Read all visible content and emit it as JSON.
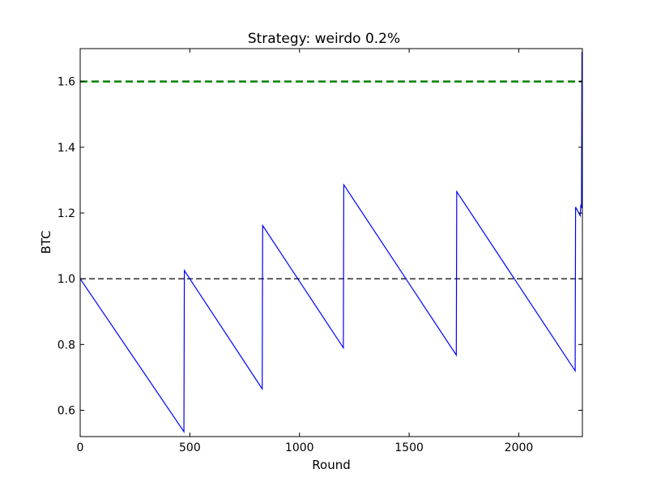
{
  "chart_data": {
    "type": "line",
    "title": "Strategy: weirdo 0.2%",
    "xlabel": "Round",
    "ylabel": "BTC",
    "xlim": [
      0,
      2290
    ],
    "ylim": [
      0.52,
      1.7
    ],
    "x_ticks": [
      0,
      500,
      1000,
      1500,
      2000
    ],
    "x_tick_labels": [
      "0",
      "500",
      "1000",
      "1500",
      "2000"
    ],
    "y_ticks": [
      0.6,
      0.8,
      1.0,
      1.2,
      1.4,
      1.6
    ],
    "y_tick_labels": [
      "0.6",
      "0.8",
      "1.0",
      "1.2",
      "1.4",
      "1.6"
    ],
    "grid": false,
    "series": [
      {
        "color": "#0000ff",
        "x": [
          0,
          473,
          475,
          830,
          832,
          1200,
          1202,
          1715,
          1717,
          2257,
          2259,
          2280,
          2283,
          2286,
          2288
        ],
        "y": [
          1.0,
          0.535,
          1.025,
          0.665,
          1.162,
          0.79,
          1.286,
          0.768,
          1.265,
          0.72,
          1.218,
          1.192,
          1.225,
          1.215,
          1.69
        ]
      }
    ],
    "reference_lines": [
      {
        "y": 1.6,
        "color": "#008000",
        "style": "dashed"
      },
      {
        "y": 1.0,
        "color": "#000000",
        "style": "dashed"
      }
    ]
  }
}
